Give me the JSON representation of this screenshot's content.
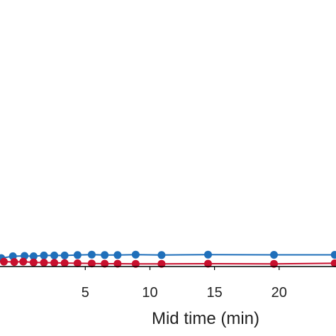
{
  "chart_data": {
    "type": "line",
    "xlabel": "Mid time (min)",
    "ylabel": "",
    "title": "",
    "xlim": [
      -1.6,
      24.4
    ],
    "ylim": [
      0,
      0.65
    ],
    "x_ticks": [
      5,
      10,
      15,
      20
    ],
    "x_tick_labels": [
      "5",
      "10",
      "15",
      "20"
    ],
    "grid": false,
    "legend": "none",
    "series": [
      {
        "color": "#1f6fba",
        "x": [
          -1.5,
          -0.6,
          0.3,
          1.0,
          1.8,
          2.6,
          3.4,
          4.4,
          5.5,
          6.5,
          7.5,
          8.9,
          10.9,
          14.5,
          19.6,
          24.3
        ],
        "y": [
          0.0205,
          0.025,
          0.026,
          0.025,
          0.027,
          0.027,
          0.027,
          0.028,
          0.029,
          0.028,
          0.028,
          0.029,
          0.028,
          0.029,
          0.0285,
          0.0285
        ]
      },
      {
        "color": "#c8102e",
        "x": [
          -1.3,
          -0.5,
          0.2,
          1.0,
          1.8,
          2.6,
          3.4,
          4.4,
          5.5,
          6.5,
          7.5,
          8.9,
          10.9,
          14.5,
          19.6,
          24.3
        ],
        "y": [
          0.012,
          0.011,
          0.012,
          0.01,
          0.0095,
          0.009,
          0.0085,
          0.008,
          0.0075,
          0.007,
          0.007,
          0.0065,
          0.0065,
          0.007,
          0.0065,
          0.008
        ]
      }
    ]
  }
}
